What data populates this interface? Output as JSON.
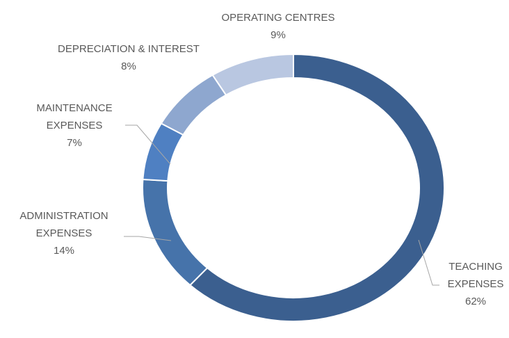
{
  "chart_data": {
    "type": "donut",
    "categories": [
      "TEACHING EXPENSES",
      "ADMINISTRATION EXPENSES",
      "MAINTENANCE EXPENSES",
      "DEPRECIATION & INTEREST",
      "OPERATING CENTRES"
    ],
    "values": [
      62,
      14,
      7,
      8,
      9
    ],
    "value_labels": [
      "62%",
      "14%",
      "7%",
      "8%",
      "9%"
    ],
    "colors": [
      "#3b5f8f",
      "#4673aa",
      "#4f80c2",
      "#8ea7cf",
      "#b9c7e1"
    ]
  }
}
